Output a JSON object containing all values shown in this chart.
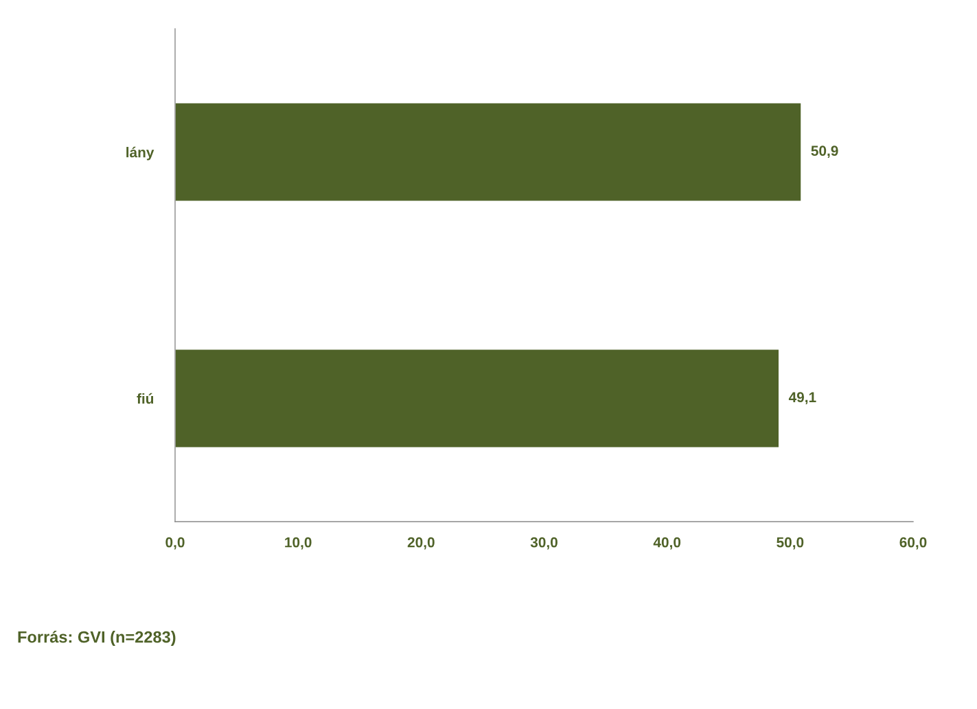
{
  "chart_data": {
    "type": "bar",
    "orientation": "horizontal",
    "categories": [
      "lány",
      "fiú"
    ],
    "values": [
      50.9,
      49.1
    ],
    "value_labels": [
      "50,9",
      "49,1"
    ],
    "color": "#4f6228",
    "xlim": [
      0,
      60
    ],
    "xticks": [
      {
        "value": 0,
        "label": "0,0"
      },
      {
        "value": 10,
        "label": "10,0"
      },
      {
        "value": 20,
        "label": "20,0"
      },
      {
        "value": 30,
        "label": "30,0"
      },
      {
        "value": 40,
        "label": "40,0"
      },
      {
        "value": 50,
        "label": "50,0"
      },
      {
        "value": 60,
        "label": "60,0"
      }
    ],
    "grid": false,
    "legend": false,
    "annotations": [
      "Forrás: GVI (n=2283)"
    ]
  }
}
